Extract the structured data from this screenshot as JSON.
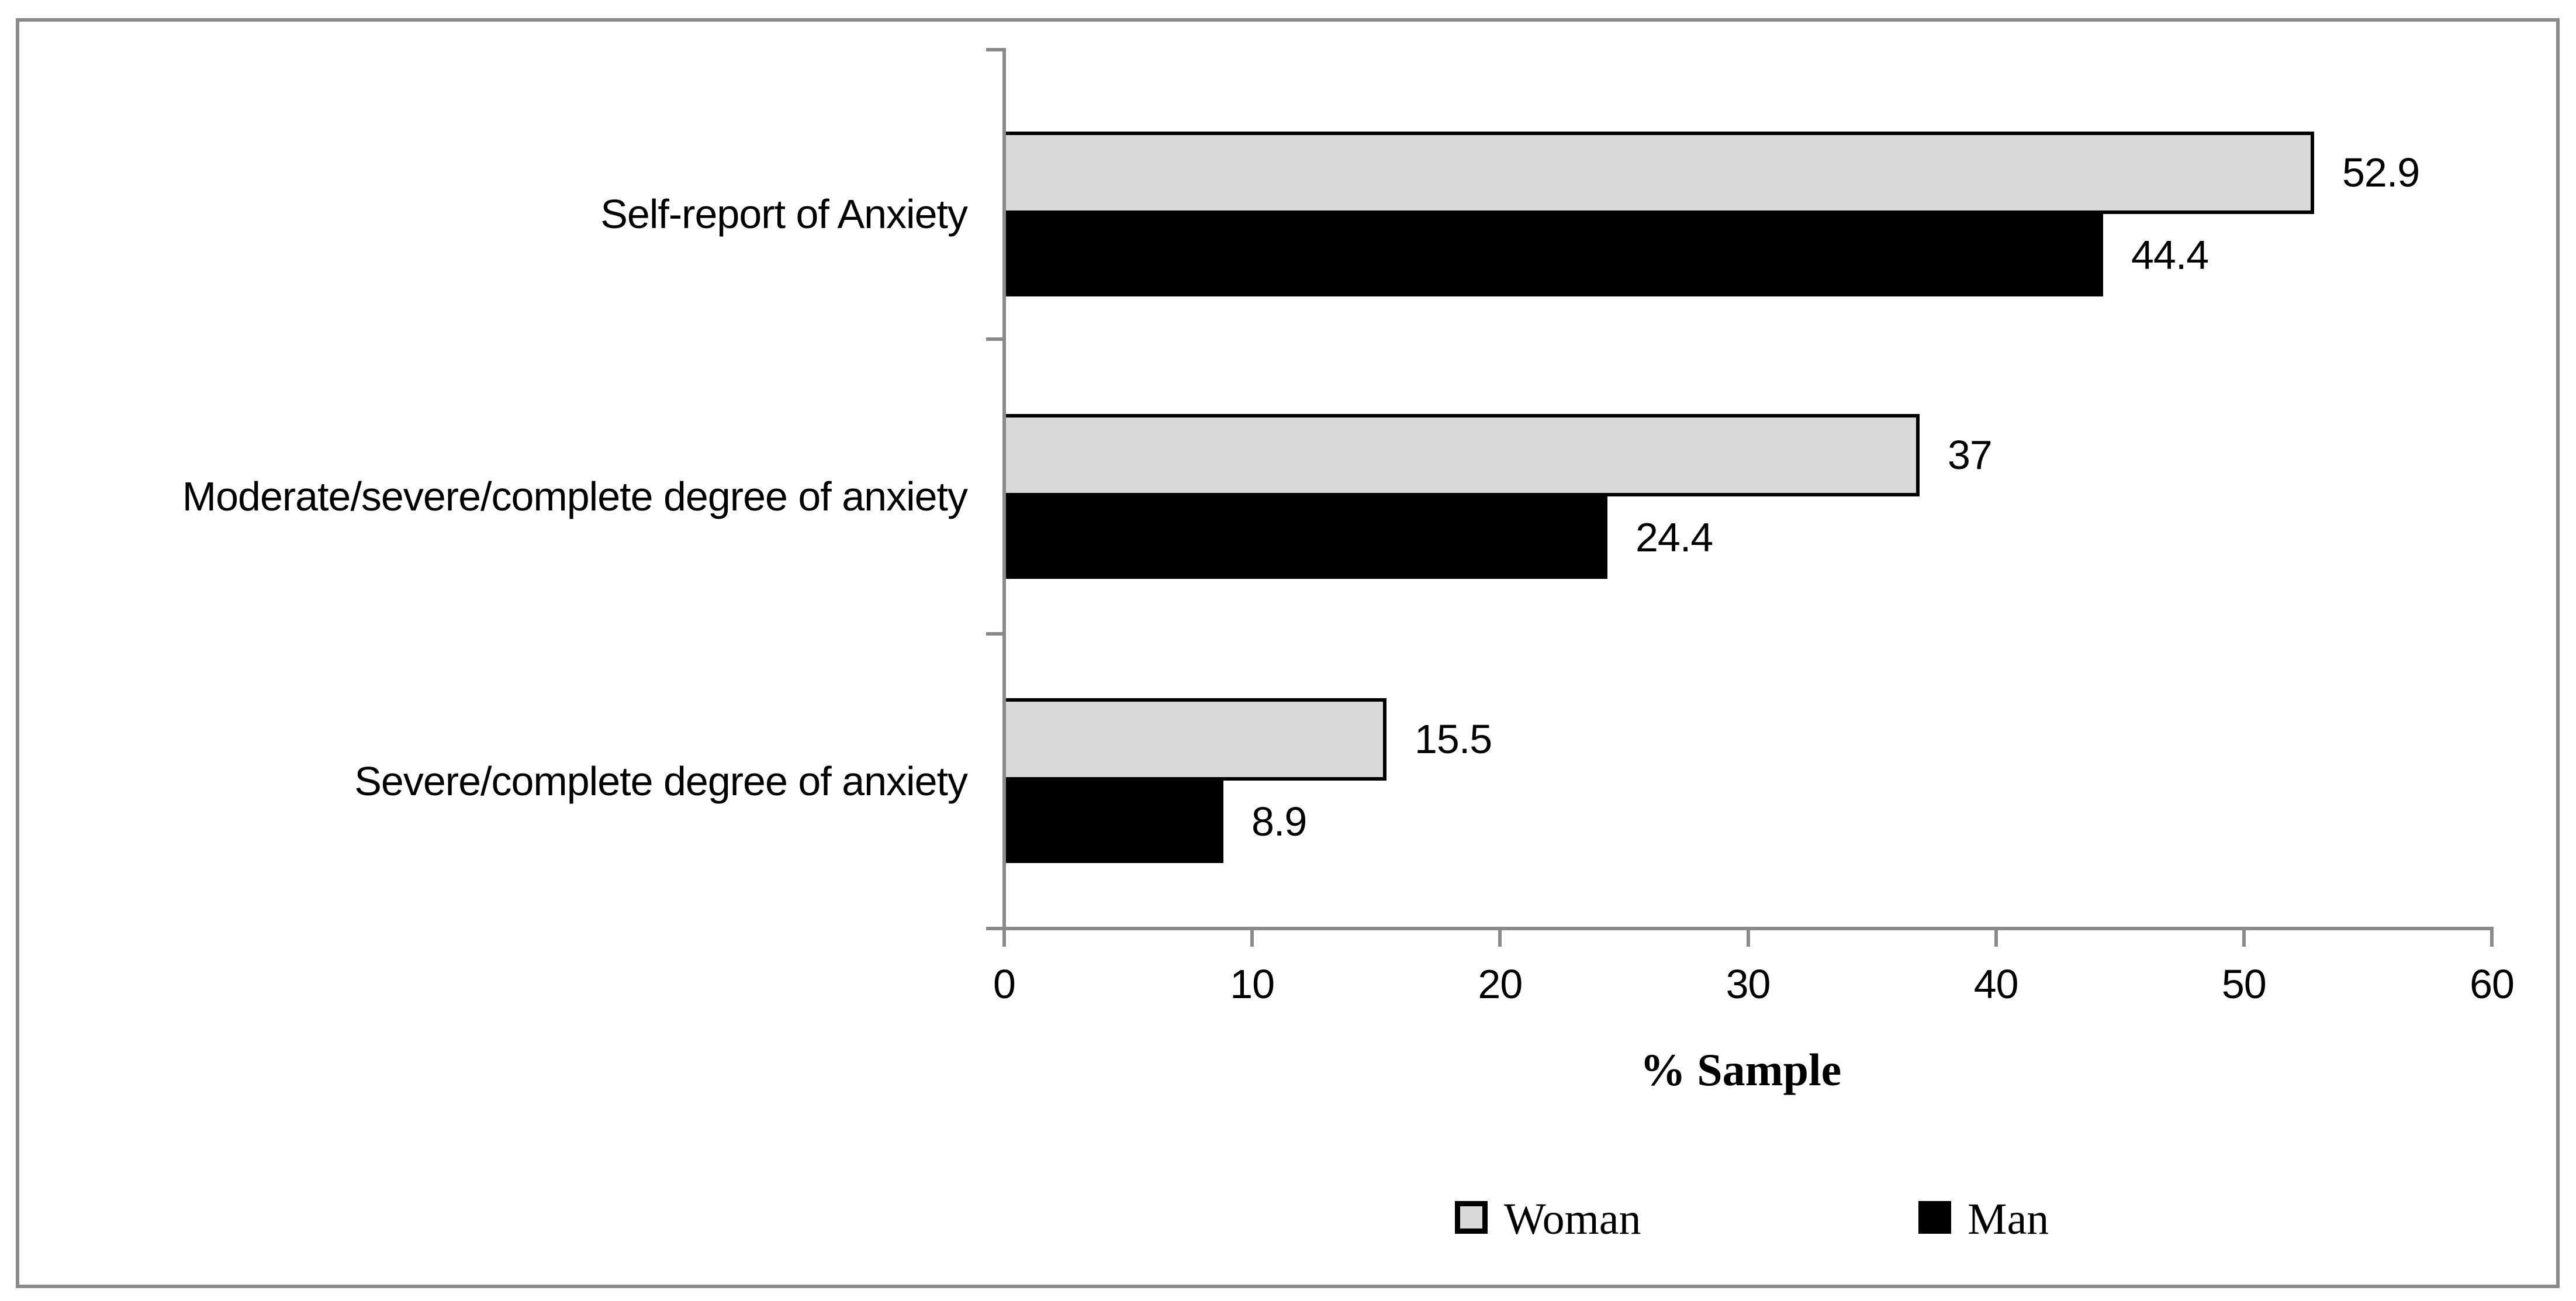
{
  "chart_data": {
    "type": "bar",
    "orientation": "horizontal",
    "title": "",
    "categories": [
      "Self-report of Anxiety",
      "Moderate/severe/complete degree of anxiety",
      "Severe/complete degree of anxiety"
    ],
    "series": [
      {
        "name": "Woman",
        "color": "#d9d9d9",
        "border_color": "#000000",
        "values": [
          52.9,
          37,
          15.5
        ]
      },
      {
        "name": "Man",
        "color": "#000000",
        "border_color": "#000000",
        "values": [
          44.4,
          24.4,
          8.9
        ]
      }
    ],
    "xlabel": "% Sample",
    "ylabel": "",
    "xlim": [
      0,
      60
    ],
    "x_ticks": [
      "0",
      "10",
      "20",
      "30",
      "40",
      "50",
      "60"
    ],
    "grid": false,
    "legend_position": "bottom",
    "axis_color": "#8a8a8a",
    "frame_color": "#8a8a8a",
    "background_color": "#ffffff"
  }
}
